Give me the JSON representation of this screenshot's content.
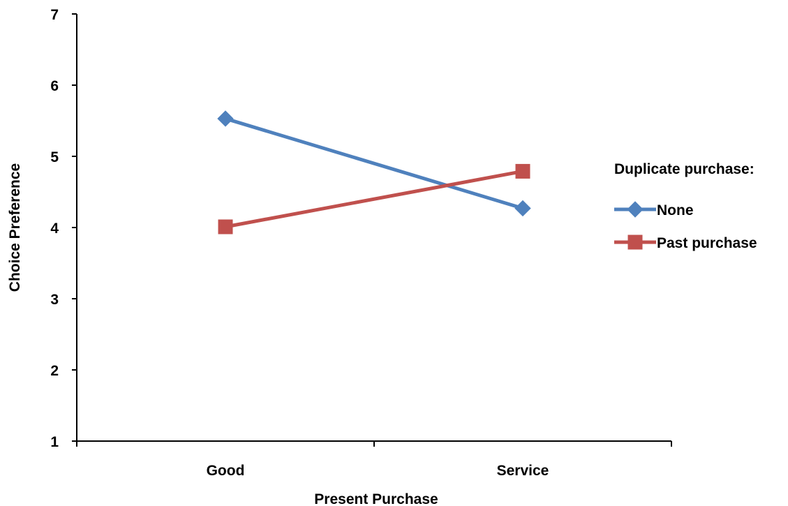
{
  "chart_data": {
    "type": "line",
    "title": "",
    "xlabel": "Present Purchase",
    "ylabel": "Choice Preference",
    "categories": [
      "Good",
      "Service"
    ],
    "ylim": [
      1,
      7
    ],
    "yticks": [
      1,
      2,
      3,
      4,
      5,
      6,
      7
    ],
    "grid": false,
    "legend": {
      "title": "Duplicate purchase:",
      "position": "right"
    },
    "series": [
      {
        "name": "None",
        "values": [
          5.53,
          4.27
        ],
        "color": "#4f81bd",
        "marker": "diamond"
      },
      {
        "name": "Past purchase",
        "values": [
          4.01,
          4.79
        ],
        "color": "#c0504d",
        "marker": "square"
      }
    ]
  }
}
